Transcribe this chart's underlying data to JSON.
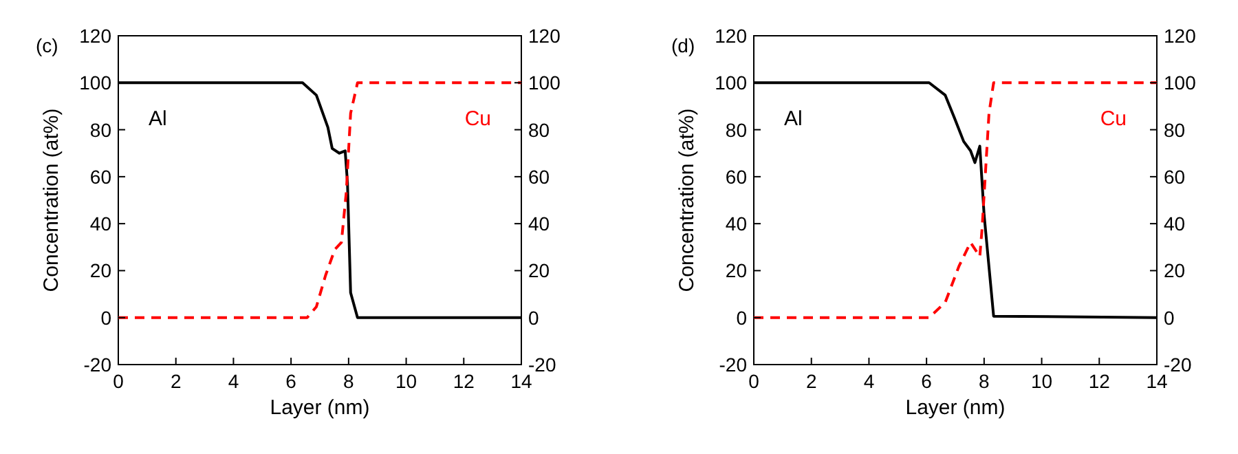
{
  "chart_data": [
    {
      "type": "line",
      "title": "(c)",
      "xlabel": "Layer (nm)",
      "ylabel": "Concentration (at%)",
      "xlim": [
        0,
        14
      ],
      "xticks": [
        0,
        2,
        4,
        6,
        8,
        10,
        12,
        14
      ],
      "ylim": [
        -20,
        120
      ],
      "yticks": [
        -20,
        0,
        20,
        40,
        60,
        80,
        100,
        120
      ],
      "y2lim": [
        -20,
        120
      ],
      "y2ticks": [
        -20,
        0,
        20,
        40,
        60,
        80,
        100,
        120
      ],
      "series": [
        {
          "name": "Al",
          "color": "#000000",
          "line_style": "solid",
          "x": [
            0,
            6.4,
            6.88,
            7.28,
            7.43,
            7.68,
            7.88,
            7.96,
            8.07,
            8.31,
            14
          ],
          "values": [
            100,
            100,
            94.7,
            81,
            72,
            70,
            71,
            57.6,
            10.6,
            0,
            0
          ]
        },
        {
          "name": "Cu",
          "color": "#ff0000",
          "line_style": "dashed",
          "x": [
            0,
            6.56,
            6.88,
            7.2,
            7.52,
            7.75,
            7.92,
            8.07,
            8.31,
            14
          ],
          "values": [
            0,
            0,
            4.6,
            18,
            29,
            32,
            53.5,
            87,
            100,
            100
          ]
        }
      ]
    },
    {
      "type": "line",
      "title": "(d)",
      "xlabel": "Layer (nm)",
      "ylabel": "Concentration (at%)",
      "xlim": [
        0,
        14
      ],
      "xticks": [
        0,
        2,
        4,
        6,
        8,
        10,
        12,
        14
      ],
      "ylim": [
        -20,
        120
      ],
      "yticks": [
        -20,
        0,
        20,
        40,
        60,
        80,
        100,
        120
      ],
      "y2lim": [
        -20,
        120
      ],
      "y2ticks": [
        -20,
        0,
        20,
        40,
        60,
        80,
        100,
        120
      ],
      "series": [
        {
          "name": "Al",
          "color": "#000000",
          "line_style": "solid",
          "x": [
            0,
            6.09,
            6.65,
            6.97,
            7.29,
            7.53,
            7.68,
            7.85,
            8.0,
            8.33,
            14
          ],
          "values": [
            100,
            100,
            94.7,
            85,
            75,
            71,
            66,
            73,
            43.7,
            0.6,
            0
          ]
        },
        {
          "name": "Cu",
          "color": "#ff0000",
          "line_style": "dashed",
          "x": [
            0,
            6.09,
            6.65,
            7.13,
            7.53,
            7.85,
            7.93,
            8.17,
            8.33,
            14
          ],
          "values": [
            0,
            0,
            6.5,
            22,
            32,
            26,
            38,
            87,
            100,
            100
          ]
        }
      ]
    }
  ]
}
